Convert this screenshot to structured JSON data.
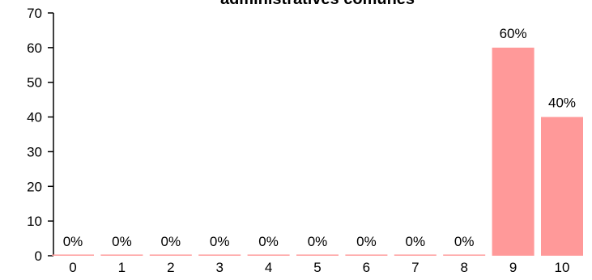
{
  "chart_data": {
    "type": "bar",
    "title": "administratives comunes",
    "xlabel": "",
    "ylabel": "",
    "categories": [
      "0",
      "1",
      "2",
      "3",
      "4",
      "5",
      "6",
      "7",
      "8",
      "9",
      "10"
    ],
    "values": [
      0,
      0,
      0,
      0,
      0,
      0,
      0,
      0,
      0,
      60,
      40
    ],
    "data_labels": [
      "0%",
      "0%",
      "0%",
      "0%",
      "0%",
      "0%",
      "0%",
      "0%",
      "0%",
      "60%",
      "40%"
    ],
    "ylim": [
      0,
      70
    ],
    "yticks": [
      "0",
      "10",
      "20",
      "30",
      "40",
      "50",
      "60",
      "70"
    ],
    "grid": false,
    "legend": "none",
    "bar_color": "#ff9999"
  }
}
